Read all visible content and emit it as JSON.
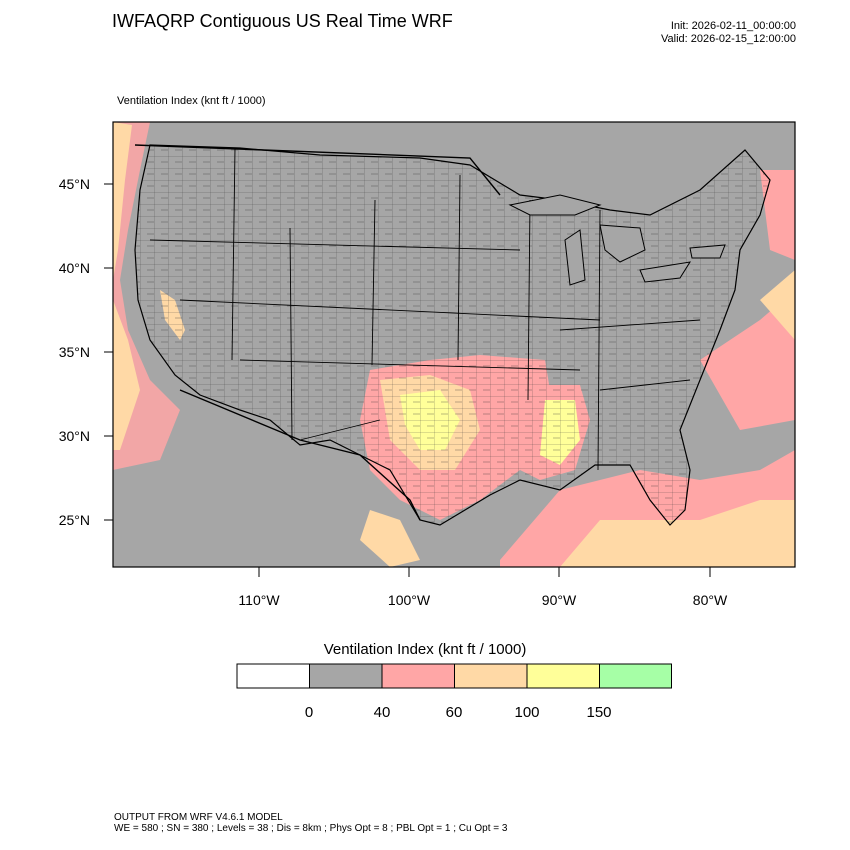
{
  "header": {
    "title": "IWFAQRP Contiguous US Real Time WRF",
    "init": "Init: 2026-02-11_00:00:00",
    "valid": "Valid: 2026-02-15_12:00:00"
  },
  "field_label": "Ventilation Index   (knt ft / 1000)",
  "map": {
    "lat_labels": [
      "45°N",
      "40°N",
      "35°N",
      "30°N",
      "25°N"
    ],
    "lon_labels": [
      "110°W",
      "100°W",
      "90°W",
      "80°W"
    ],
    "land_color": "#a6a6a6",
    "boundary_color": "#000000"
  },
  "colorbar": {
    "title": "Ventilation Index  (knt ft / 1000)",
    "colors": [
      "#ffffff",
      "#a6a6a6",
      "#ffa6a6",
      "#ffd9a6",
      "#ffff99",
      "#a6ffa6"
    ],
    "ticks": [
      "0",
      "40",
      "60",
      "100",
      "150"
    ]
  },
  "footer": {
    "line1": "OUTPUT FROM WRF V4.6.1 MODEL",
    "line2": "WE = 580 ; SN = 380 ; Levels = 38 ; Dis = 8km ; Phys Opt = 8 ; PBL Opt = 1 ; Cu Opt = 3"
  }
}
